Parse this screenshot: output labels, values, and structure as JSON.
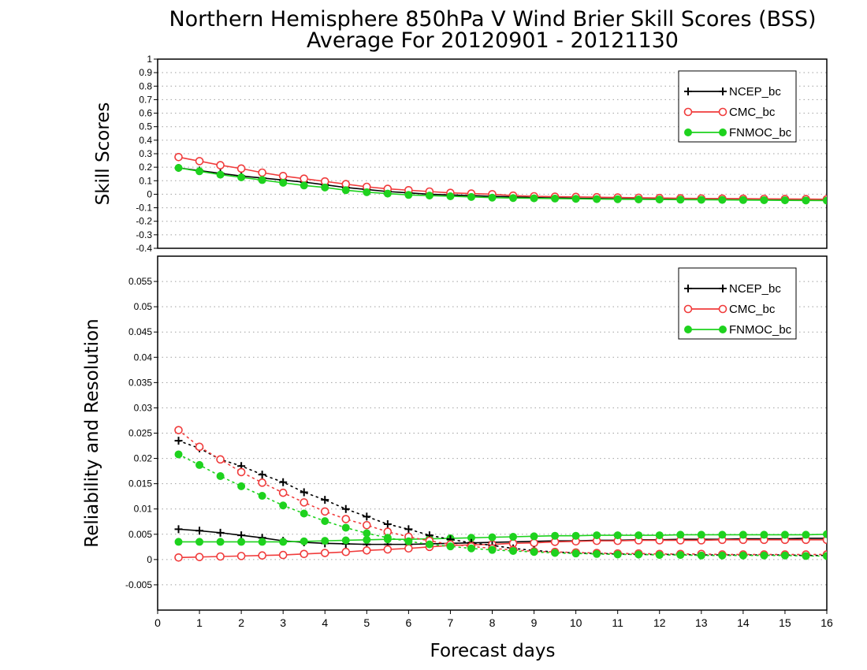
{
  "chart_data": {
    "title": "Northern Hemisphere 850hPa V Wind Brier Skill Scores (BSS)",
    "subtitle": "Average For 20120901 - 20121130",
    "xlabel": "Forecast days",
    "x_ticks": [
      "0",
      "1",
      "2",
      "3",
      "4",
      "5",
      "6",
      "7",
      "8",
      "9",
      "10",
      "11",
      "12",
      "13",
      "14",
      "15",
      "16"
    ],
    "xlim": [
      0,
      16
    ],
    "x": [
      0.5,
      1,
      1.5,
      2,
      2.5,
      3,
      3.5,
      4,
      4.5,
      5,
      5.5,
      6,
      6.5,
      7,
      7.5,
      8,
      8.5,
      9,
      9.5,
      10,
      10.5,
      11,
      11.5,
      12,
      12.5,
      13,
      13.5,
      14,
      14.5,
      15,
      15.5,
      16
    ],
    "colors": {
      "NCEP_bc": "#000000",
      "CMC_bc": "#f03c3c",
      "FNMOC_bc": "#1ed21e"
    },
    "panels": [
      {
        "type": "line",
        "ylabel": "Skill Scores",
        "ylim": [
          -0.4,
          1
        ],
        "y_ticks": [
          "-0.4",
          "-0.3",
          "-0.2",
          "-0.1",
          "0",
          "0.1",
          "0.2",
          "0.3",
          "0.4",
          "0.5",
          "0.6",
          "0.7",
          "0.8",
          "0.9",
          "1"
        ],
        "grid": true,
        "legend": {
          "position": "top-right",
          "entries": [
            "NCEP_bc",
            "CMC_bc",
            "FNMOC_bc"
          ]
        },
        "series": [
          {
            "name": "NCEP_bc",
            "marker": "plus",
            "style": "solid",
            "values": [
              0.195,
              0.175,
              0.155,
              0.135,
              0.12,
              0.105,
              0.09,
              0.07,
              0.05,
              0.035,
              0.02,
              0.01,
              0,
              -0.005,
              -0.01,
              -0.015,
              -0.02,
              -0.025,
              -0.028,
              -0.03,
              -0.032,
              -0.034,
              -0.035,
              -0.036,
              -0.037,
              -0.038,
              -0.039,
              -0.04,
              -0.041,
              -0.042,
              -0.043,
              -0.044
            ]
          },
          {
            "name": "CMC_bc",
            "marker": "open-circle",
            "style": "solid",
            "values": [
              0.275,
              0.245,
              0.215,
              0.19,
              0.16,
              0.135,
              0.115,
              0.095,
              0.075,
              0.055,
              0.04,
              0.03,
              0.02,
              0.01,
              0.005,
              0,
              -0.01,
              -0.015,
              -0.018,
              -0.02,
              -0.022,
              -0.024,
              -0.026,
              -0.028,
              -0.03,
              -0.031,
              -0.032,
              -0.033,
              -0.034,
              -0.035,
              -0.036,
              -0.037
            ]
          },
          {
            "name": "FNMOC_bc",
            "marker": "filled-circle",
            "style": "solid",
            "values": [
              0.195,
              0.17,
              0.145,
              0.125,
              0.105,
              0.085,
              0.065,
              0.05,
              0.03,
              0.015,
              0.005,
              -0.005,
              -0.01,
              -0.015,
              -0.02,
              -0.025,
              -0.028,
              -0.03,
              -0.032,
              -0.034,
              -0.036,
              -0.037,
              -0.038,
              -0.039,
              -0.04,
              -0.041,
              -0.042,
              -0.043,
              -0.044,
              -0.045,
              -0.046,
              -0.047
            ]
          }
        ]
      },
      {
        "type": "line",
        "ylabel": "Reliability and Resolution",
        "ylim": [
          -0.01,
          0.06
        ],
        "y_ticks": [
          "-0.005",
          "0",
          "0.005",
          "0.01",
          "0.015",
          "0.02",
          "0.025",
          "0.03",
          "0.035",
          "0.04",
          "0.045",
          "0.05",
          "0.055"
        ],
        "grid": true,
        "legend": {
          "position": "top-right",
          "entries": [
            "NCEP_bc",
            "CMC_bc",
            "FNMOC_bc"
          ]
        },
        "series": [
          {
            "name": "NCEP_bc",
            "marker": "plus",
            "style": "solid",
            "values": [
              0.006,
              0.0057,
              0.0053,
              0.0048,
              0.0043,
              0.0037,
              0.0034,
              0.0032,
              0.0031,
              0.003,
              0.003,
              0.003,
              0.0031,
              0.0032,
              0.0033,
              0.0034,
              0.0035,
              0.0036,
              0.0037,
              0.0037,
              0.0038,
              0.0038,
              0.0039,
              0.0039,
              0.004,
              0.004,
              0.004,
              0.0041,
              0.0041,
              0.0041,
              0.0042,
              0.0042
            ]
          },
          {
            "name": "CMC_bc",
            "marker": "open-circle",
            "style": "solid",
            "values": [
              0.0004,
              0.0005,
              0.0006,
              0.0007,
              0.0008,
              0.0009,
              0.0011,
              0.0013,
              0.0015,
              0.0018,
              0.002,
              0.0022,
              0.0025,
              0.0028,
              0.0029,
              0.003,
              0.0032,
              0.0033,
              0.0035,
              0.0036,
              0.0037,
              0.0037,
              0.0038,
              0.0038,
              0.0038,
              0.0038,
              0.0039,
              0.0039,
              0.0039,
              0.0039,
              0.0039,
              0.0039
            ]
          },
          {
            "name": "FNMOC_bc",
            "marker": "filled-circle",
            "style": "solid",
            "values": [
              0.0035,
              0.0035,
              0.0035,
              0.0035,
              0.0035,
              0.0035,
              0.0036,
              0.0037,
              0.0038,
              0.0039,
              0.004,
              0.004,
              0.0041,
              0.0042,
              0.0043,
              0.0044,
              0.0045,
              0.0046,
              0.0047,
              0.0047,
              0.0048,
              0.0048,
              0.0048,
              0.0048,
              0.0049,
              0.0049,
              0.0049,
              0.0049,
              0.0049,
              0.0049,
              0.0049,
              0.005
            ]
          },
          {
            "name": "NCEP_bc",
            "marker": "plus",
            "style": "dotted",
            "values": [
              0.0235,
              0.022,
              0.0198,
              0.0185,
              0.0168,
              0.0153,
              0.0133,
              0.0118,
              0.01,
              0.0085,
              0.007,
              0.006,
              0.0048,
              0.004,
              0.0033,
              0.0028,
              0.0022,
              0.0018,
              0.0015,
              0.0013,
              0.0012,
              0.0011,
              0.001,
              0.001,
              0.001,
              0.0009,
              0.0009,
              0.0009,
              0.0009,
              0.0009,
              0.0008,
              0.0008
            ]
          },
          {
            "name": "CMC_bc",
            "marker": "open-circle",
            "style": "dotted",
            "values": [
              0.0256,
              0.0223,
              0.0198,
              0.0173,
              0.0152,
              0.0132,
              0.0113,
              0.0095,
              0.008,
              0.0068,
              0.0055,
              0.0045,
              0.0037,
              0.003,
              0.0026,
              0.0022,
              0.0019,
              0.0016,
              0.0015,
              0.0014,
              0.0013,
              0.0012,
              0.0012,
              0.0011,
              0.0011,
              0.0011,
              0.001,
              0.001,
              0.001,
              0.001,
              0.001,
              0.001
            ]
          },
          {
            "name": "FNMOC_bc",
            "marker": "filled-circle",
            "style": "dotted",
            "values": [
              0.0208,
              0.0187,
              0.0165,
              0.0145,
              0.0126,
              0.0107,
              0.0091,
              0.0076,
              0.0063,
              0.0052,
              0.0043,
              0.0036,
              0.003,
              0.0026,
              0.0022,
              0.0019,
              0.0017,
              0.0015,
              0.0013,
              0.0012,
              0.0011,
              0.001,
              0.001,
              0.0009,
              0.0009,
              0.0008,
              0.0008,
              0.0008,
              0.0008,
              0.0008,
              0.0007,
              0.0007
            ]
          }
        ]
      }
    ]
  }
}
